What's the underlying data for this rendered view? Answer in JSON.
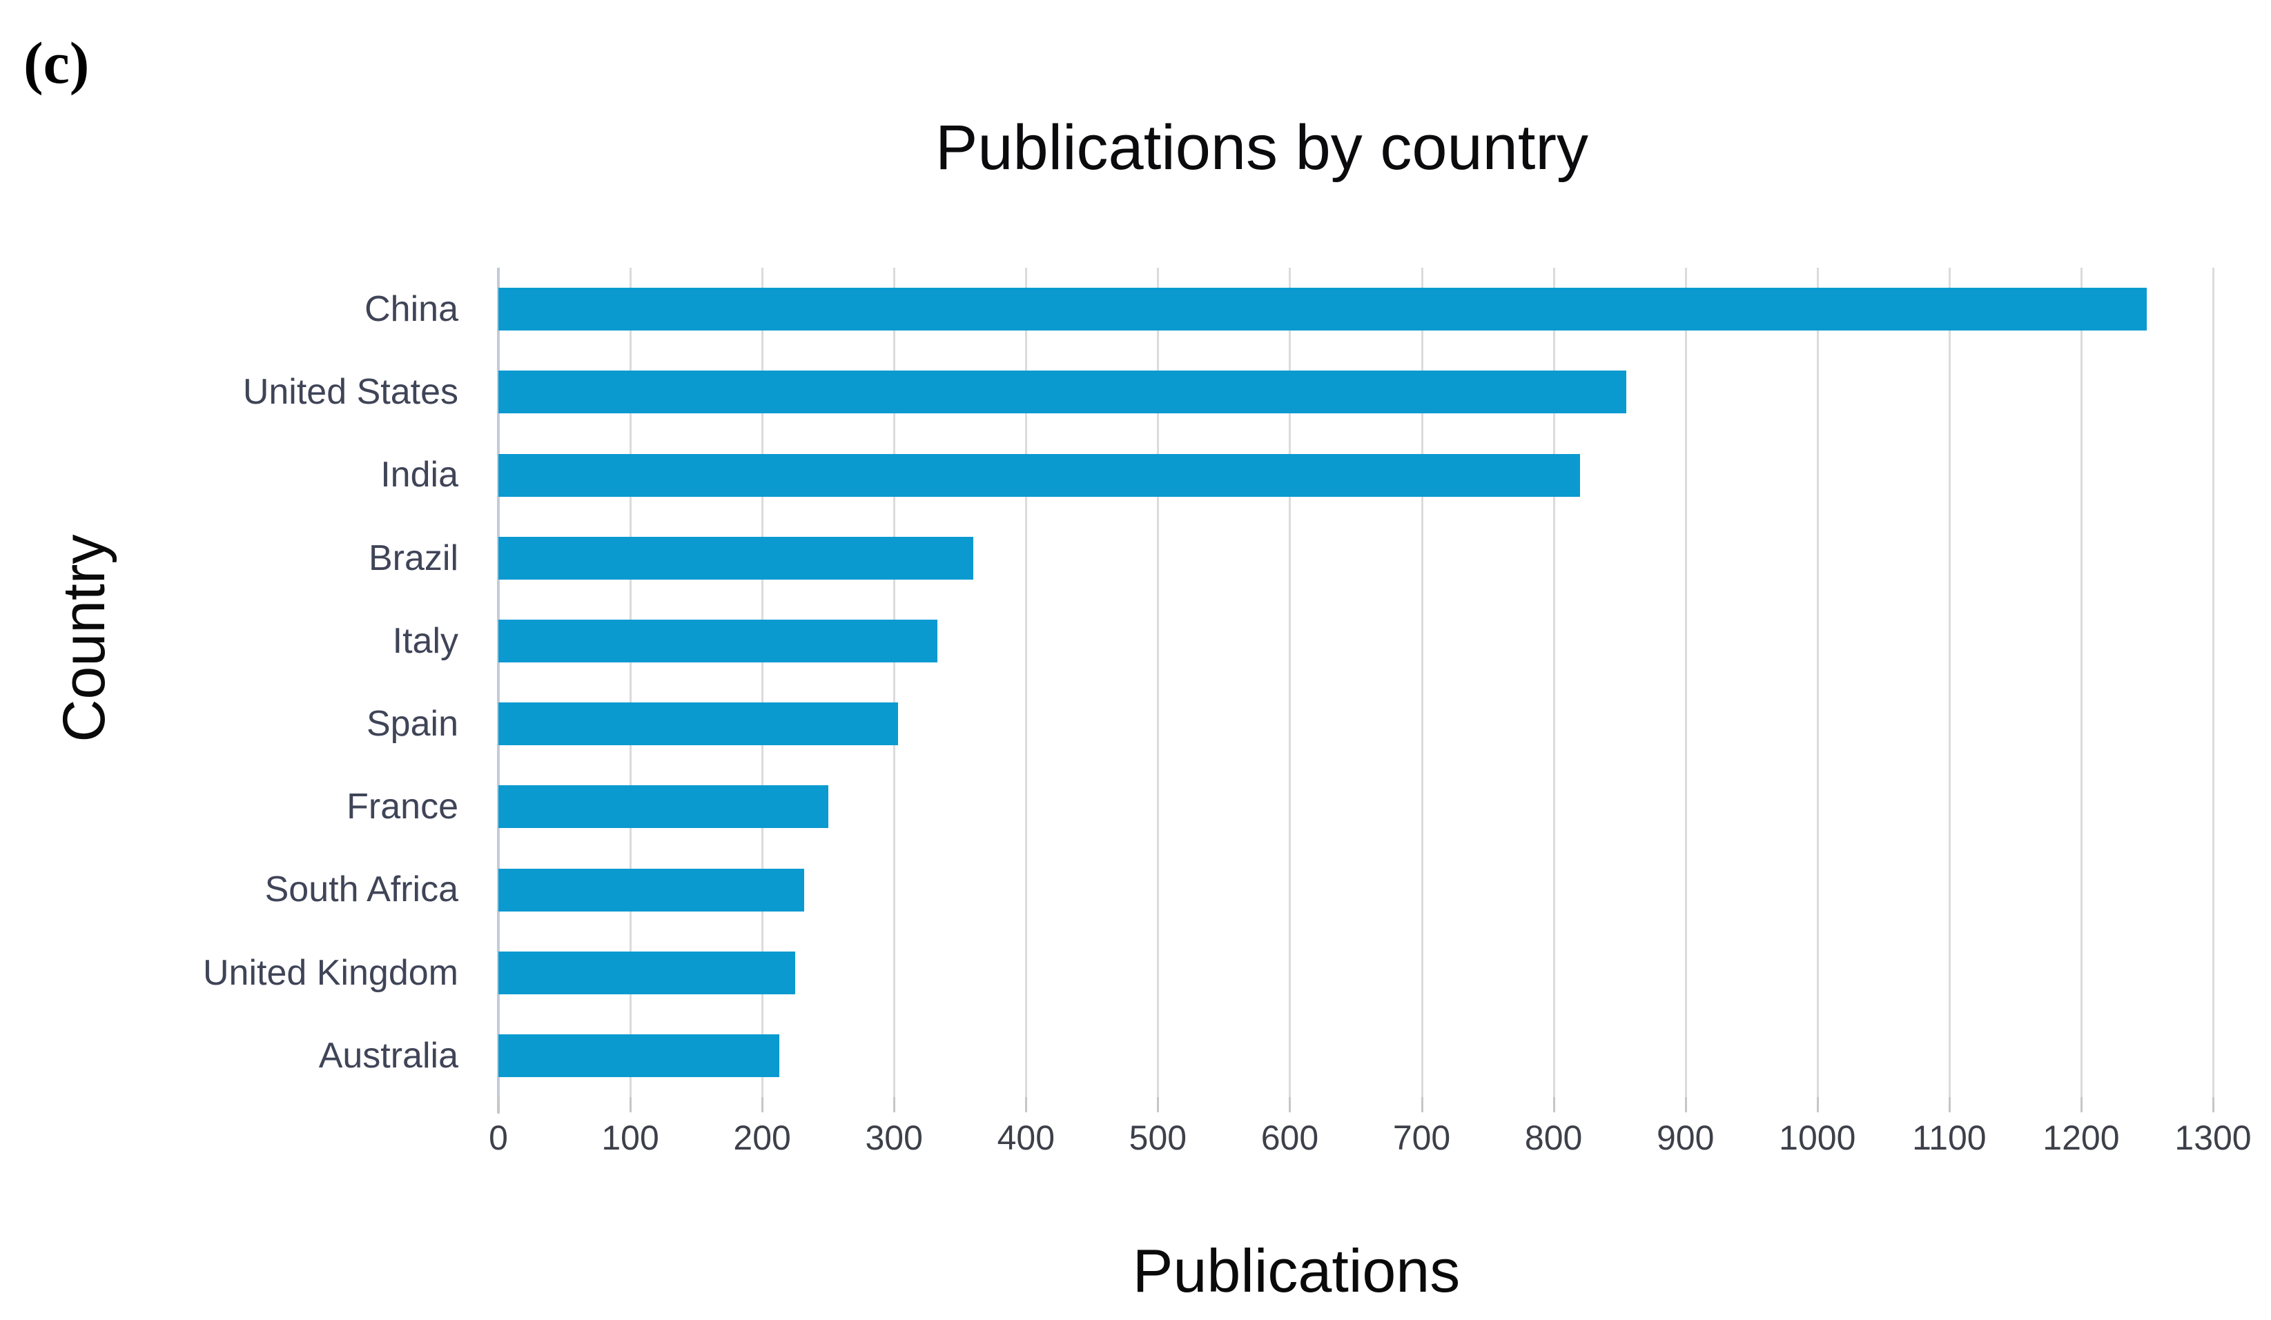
{
  "figure": {
    "label": "(c)"
  },
  "colors": {
    "bar": "#0a9ad0",
    "gridline": "#dbdbdb",
    "axis_line": "#c5cada",
    "tick_mark": "#c6c6c6",
    "country_label": "#3f4457",
    "tick_label": "#3d4049",
    "title": "#0b0b0d"
  },
  "chart_data": {
    "type": "bar",
    "orientation": "horizontal",
    "title": "Publications by country",
    "xlabel": "Publications",
    "ylabel": "Country",
    "categories": [
      "China",
      "United States",
      "India",
      "Brazil",
      "Italy",
      "Spain",
      "France",
      "South Africa",
      "United Kingdom",
      "Australia"
    ],
    "values": [
      1250,
      855,
      820,
      360,
      333,
      303,
      250,
      232,
      225,
      213
    ],
    "xlim": [
      0,
      1300
    ],
    "x_ticks": [
      0,
      100,
      200,
      300,
      400,
      500,
      600,
      700,
      800,
      900,
      1000,
      1100,
      1200,
      1300
    ],
    "grid": "vertical",
    "legend": "none"
  }
}
